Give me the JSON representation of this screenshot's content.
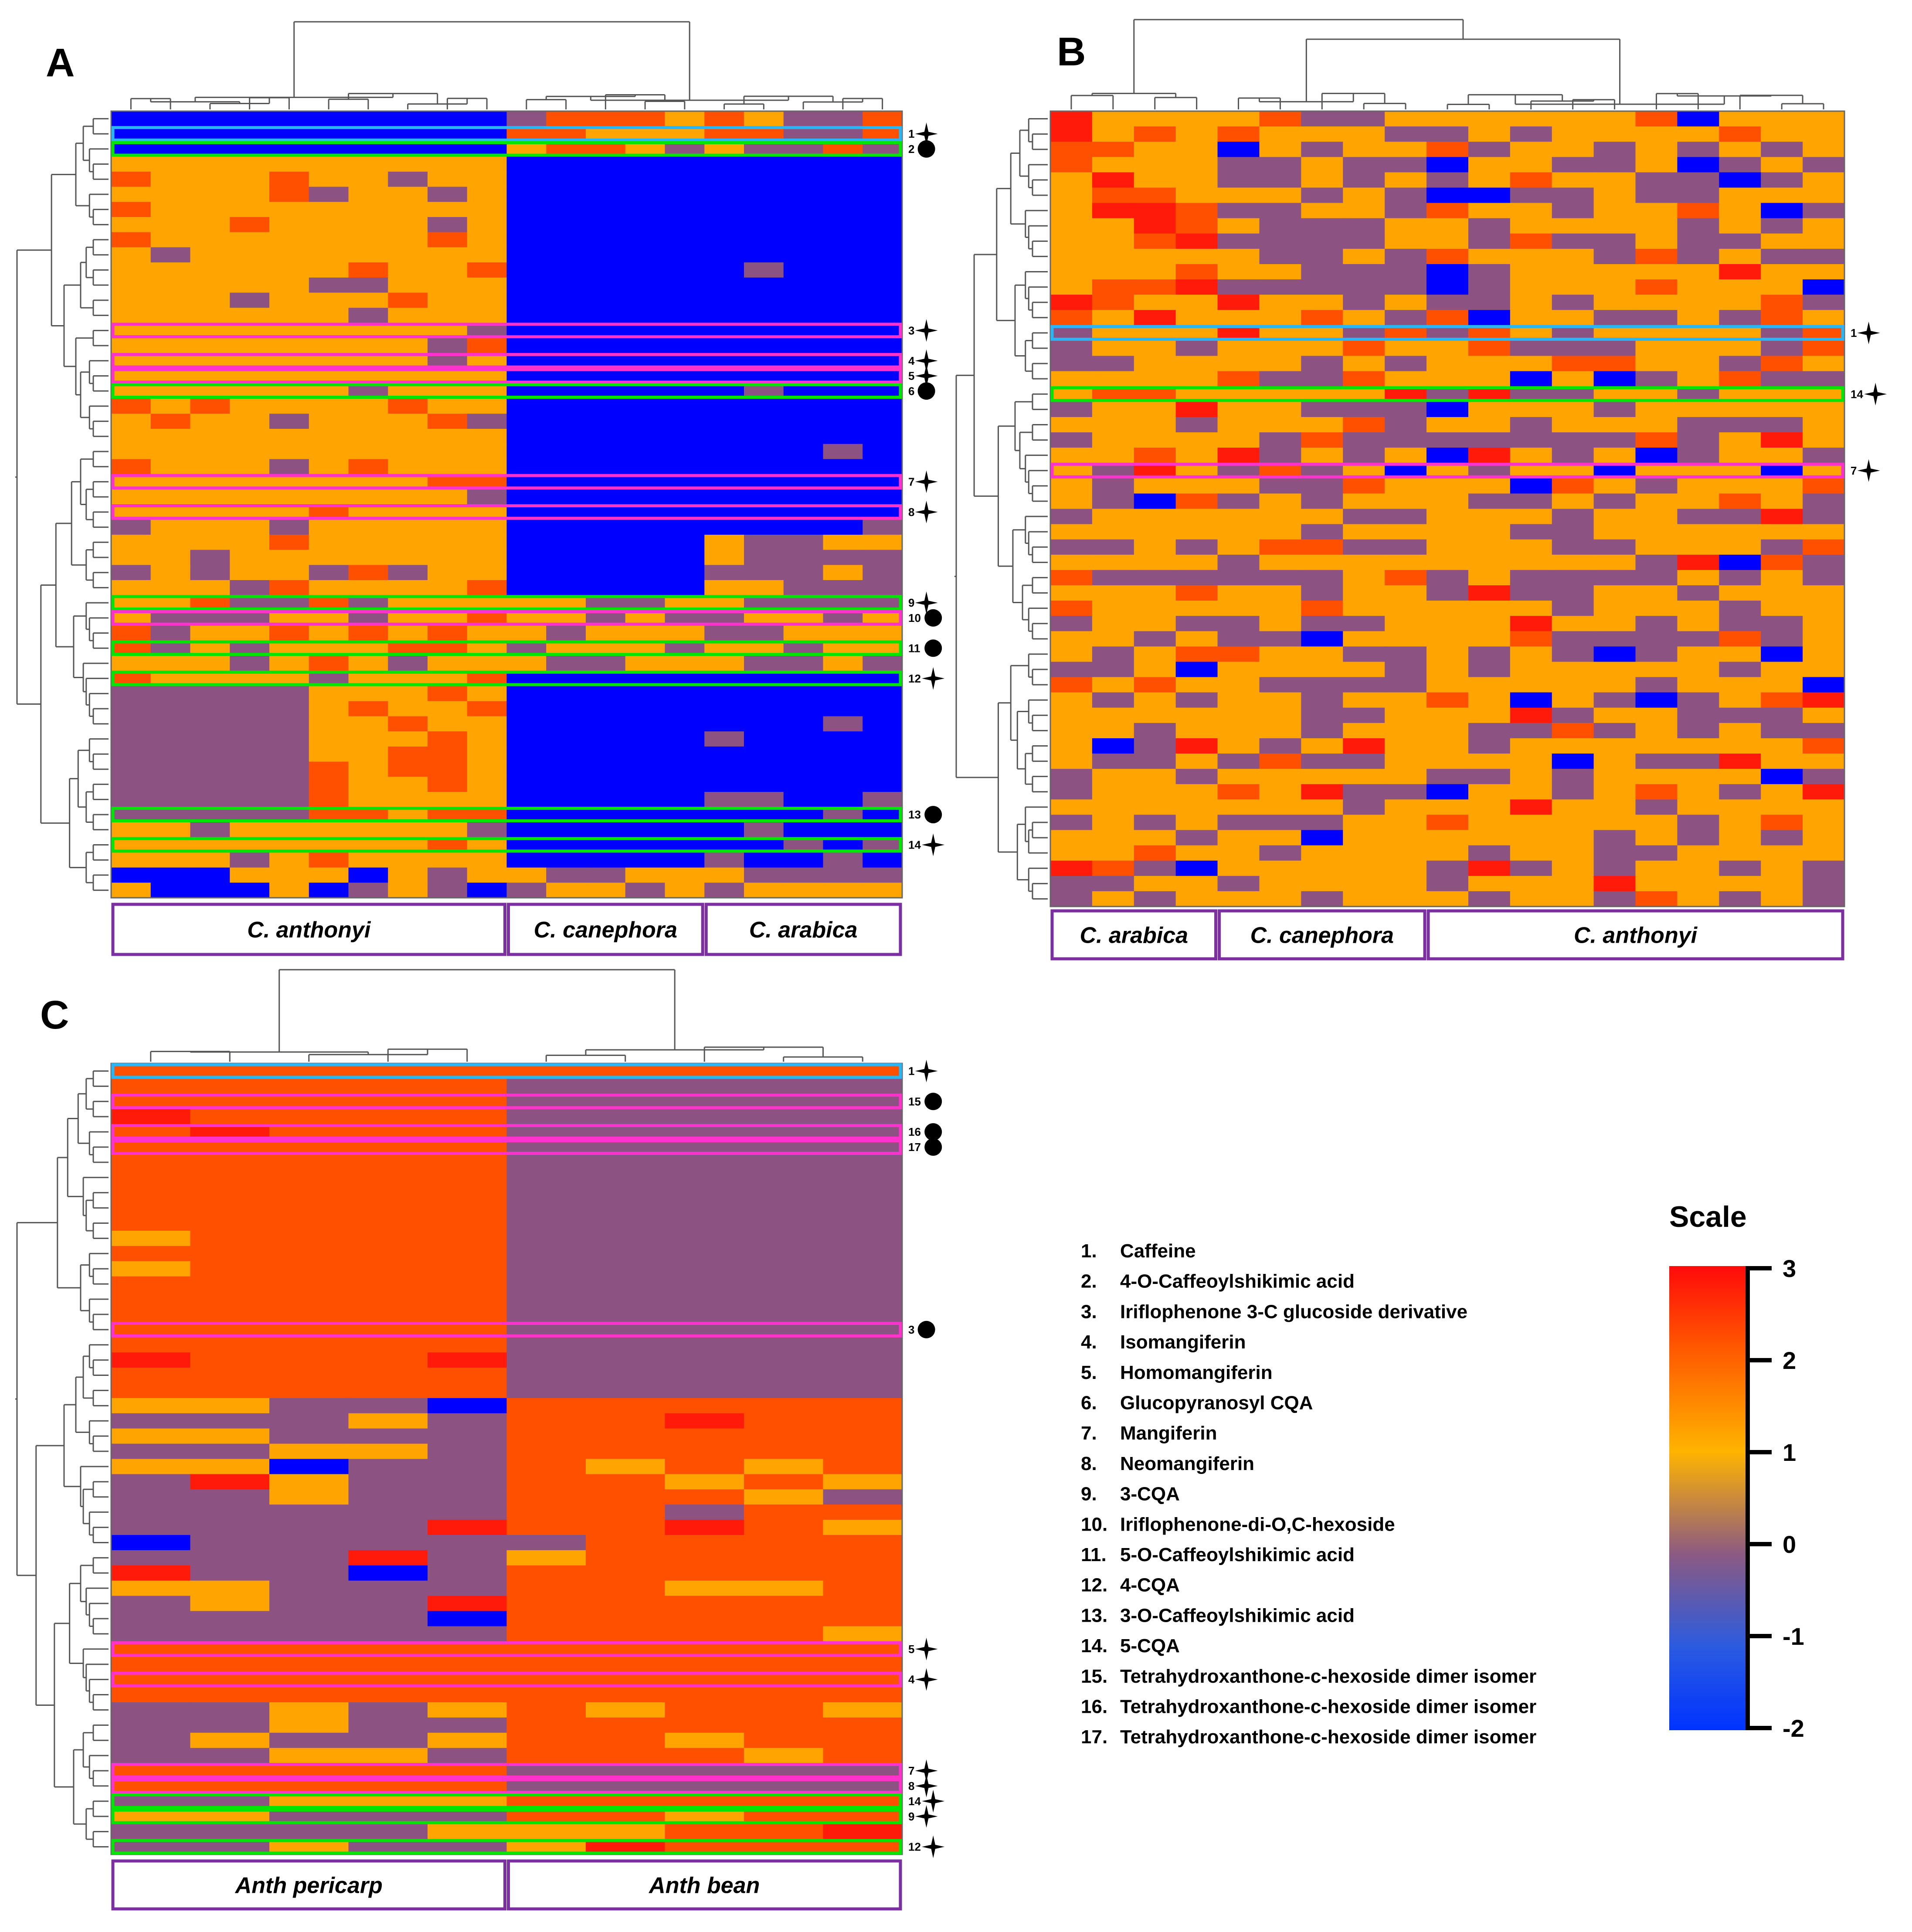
{
  "panels": [
    {
      "letter": "A",
      "rows": 52,
      "cols": 20,
      "groups": [
        "C. anthonyi",
        "C. canephora",
        "C. arabica"
      ],
      "group_cols": [
        10,
        5,
        5
      ],
      "annotations": [
        {
          "num": "1",
          "marker": "star",
          "color": "#29b6f6",
          "row": 1
        },
        {
          "num": "2",
          "marker": "dot",
          "color": "#00e600",
          "row": 2
        },
        {
          "num": "3",
          "marker": "star",
          "color": "#ff33cc",
          "row": 14
        },
        {
          "num": "4",
          "marker": "star",
          "color": "#ff33cc",
          "row": 16
        },
        {
          "num": "5",
          "marker": "star",
          "color": "#ff33cc",
          "row": 17
        },
        {
          "num": "6",
          "marker": "dot",
          "color": "#00e600",
          "row": 18
        },
        {
          "num": "7",
          "marker": "star",
          "color": "#ff33cc",
          "row": 24
        },
        {
          "num": "8",
          "marker": "star",
          "color": "#ff33cc",
          "row": 26
        },
        {
          "num": "9",
          "marker": "star",
          "color": "#00e600",
          "row": 32
        },
        {
          "num": "10",
          "marker": "dot",
          "color": "#ff33cc",
          "row": 33
        },
        {
          "num": "11",
          "marker": "dot",
          "color": "#00e600",
          "row": 35
        },
        {
          "num": "12",
          "marker": "star",
          "color": "#00e600",
          "row": 37
        },
        {
          "num": "13",
          "marker": "dot",
          "color": "#00e600",
          "row": 46
        },
        {
          "num": "14",
          "marker": "star",
          "color": "#00e600",
          "row": 48
        }
      ]
    },
    {
      "letter": "B",
      "rows": 52,
      "cols": 19,
      "groups": [
        "C. arabica",
        "C. canephora",
        "C. anthonyi"
      ],
      "group_cols": [
        4,
        5,
        10
      ],
      "annotations": [
        {
          "num": "1",
          "marker": "star",
          "color": "#29b6f6",
          "row": 14
        },
        {
          "num": "14",
          "marker": "star",
          "color": "#00e600",
          "row": 18
        },
        {
          "num": "7",
          "marker": "star",
          "color": "#ff33cc",
          "row": 23
        }
      ]
    },
    {
      "letter": "C",
      "rows": 52,
      "cols": 10,
      "groups": [
        "Anth pericarp",
        "Anth bean"
      ],
      "group_cols": [
        5,
        5
      ],
      "annotations": [
        {
          "num": "1",
          "marker": "star",
          "color": "#29b6f6",
          "row": 0
        },
        {
          "num": "15",
          "marker": "dot",
          "color": "#ff33cc",
          "row": 2
        },
        {
          "num": "16",
          "marker": "dot",
          "color": "#ff33cc",
          "row": 4
        },
        {
          "num": "17",
          "marker": "dot",
          "color": "#ff33cc",
          "row": 5
        },
        {
          "num": "3",
          "marker": "dot",
          "color": "#ff33cc",
          "row": 17
        },
        {
          "num": "5",
          "marker": "star",
          "color": "#ff33cc",
          "row": 38
        },
        {
          "num": "4",
          "marker": "star",
          "color": "#ff33cc",
          "row": 40
        },
        {
          "num": "7",
          "marker": "star",
          "color": "#ff33cc",
          "row": 46
        },
        {
          "num": "8",
          "marker": "star",
          "color": "#ff33cc",
          "row": 47
        },
        {
          "num": "14",
          "marker": "star",
          "color": "#00e600",
          "row": 48
        },
        {
          "num": "9",
          "marker": "star",
          "color": "#00e600",
          "row": 49
        },
        {
          "num": "12",
          "marker": "star",
          "color": "#00e600",
          "row": 51
        }
      ]
    }
  ],
  "legend": {
    "items": [
      {
        "num": "1.",
        "name": "Caffeine"
      },
      {
        "num": "2.",
        "name": "4-O-Caffeoylshikimic acid"
      },
      {
        "num": "3.",
        "name": "Iriflophenone 3-C glucoside derivative"
      },
      {
        "num": "4.",
        "name": "Isomangiferin"
      },
      {
        "num": "5.",
        "name": "Homomangiferin"
      },
      {
        "num": "6.",
        "name": "Glucopyranosyl CQA"
      },
      {
        "num": "7.",
        "name": "Mangiferin"
      },
      {
        "num": "8.",
        "name": "Neomangiferin"
      },
      {
        "num": "9.",
        "name": "3-CQA"
      },
      {
        "num": "10.",
        "name": "Iriflophenone-di-O,C-hexoside"
      },
      {
        "num": "11.",
        "name": "5-O-Caffeoylshikimic acid"
      },
      {
        "num": "12.",
        "name": "4-CQA"
      },
      {
        "num": "13.",
        "name": "3-O-Caffeoylshikimic acid"
      },
      {
        "num": "14.",
        "name": "5-CQA"
      },
      {
        "num": "15.",
        "name": "Tetrahydroxanthone-c-hexoside dimer isomer"
      },
      {
        "num": "16.",
        "name": "Tetrahydroxanthone-c-hexoside dimer isomer"
      },
      {
        "num": "17.",
        "name": "Tetrahydroxanthone-c-hexoside dimer isomer"
      }
    ]
  },
  "scale": {
    "title": "Scale",
    "ticks": [
      "3",
      "2",
      "1",
      "0",
      "-1",
      "-2"
    ],
    "colors": [
      "#ff0a0a",
      "#ff5a00",
      "#ffb400",
      "#8c5a82",
      "#2b5be0",
      "#0033ff"
    ]
  },
  "chart_data": {
    "type": "heatmap",
    "value_range": [
      -2,
      3
    ],
    "color_scale": "blue (-2) → purple (0) → orange (1.5) → red (3)",
    "levels": {
      "blue": -2,
      "purple": 0,
      "orange": 1.5,
      "dark_orange": 2.2,
      "red": 3
    }
  }
}
